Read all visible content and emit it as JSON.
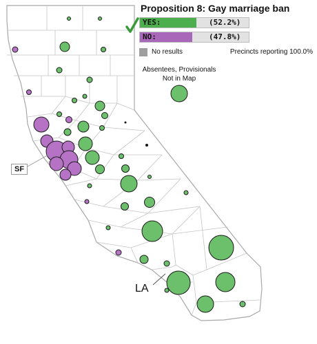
{
  "title": "Proposition 8: Gay marriage ban",
  "yes": {
    "label": "YES:",
    "pct_text": "(52.2%)",
    "fraction": 0.522,
    "color": "#4cae4c"
  },
  "no": {
    "label": "NO:",
    "pct_text": "(47.8%)",
    "fraction": 0.478,
    "color": "#a867b8"
  },
  "legend": {
    "no_results": "No results",
    "no_results_color": "#9e9e9e"
  },
  "precincts": "Precincts reporting 100.0%",
  "absentees": {
    "line1": "Absentees, Provisionals",
    "line2": "Not in Map"
  },
  "labels": {
    "sf": "SF",
    "la": "LA"
  },
  "colors": {
    "yes_bubble": "#6cc06c",
    "no_bubble": "#b673c6",
    "county_line": "#b8b8b8"
  }
}
